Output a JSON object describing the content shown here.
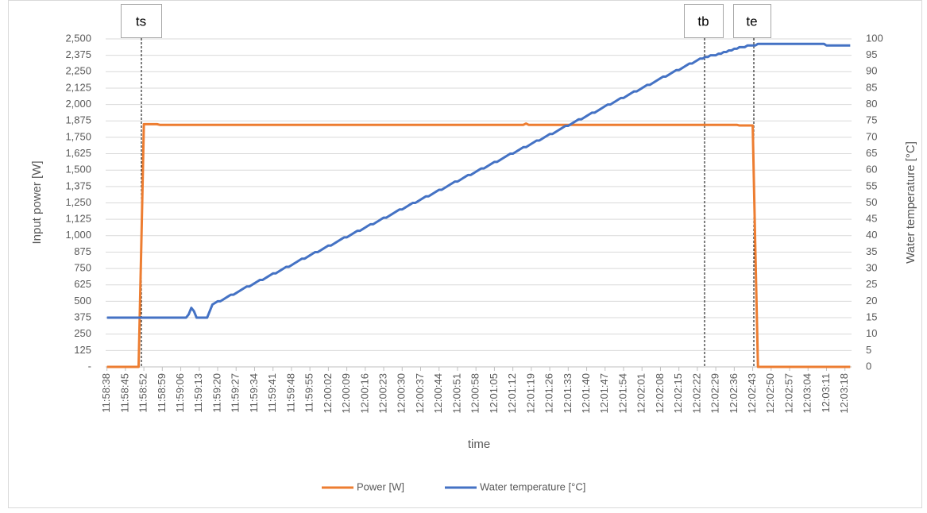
{
  "chart_data": {
    "type": "line",
    "x_label": "time",
    "y_label": "Input power [W]",
    "y2_label": "Water temperature [°C]",
    "annotations": [
      "ts",
      "tb",
      "te"
    ],
    "ylim": [
      0,
      2500
    ],
    "yticks": [
      {
        "value": 0,
        "label": "-"
      },
      125,
      250,
      375,
      500,
      625,
      750,
      875,
      {
        "value": 1000,
        "label": "1,000"
      },
      {
        "value": 1125,
        "label": "1,125"
      },
      {
        "value": 1250,
        "label": "1,250"
      },
      {
        "value": 1375,
        "label": "1,375"
      },
      {
        "value": 1500,
        "label": "1,500"
      },
      {
        "value": 1625,
        "label": "1,625"
      },
      {
        "value": 1750,
        "label": "1,750"
      },
      {
        "value": 1875,
        "label": "1,875"
      },
      {
        "value": 2000,
        "label": "2,000"
      },
      {
        "value": 2125,
        "label": "2,125"
      },
      {
        "value": 2250,
        "label": "2,250"
      },
      {
        "value": 2375,
        "label": "2,375"
      },
      {
        "value": 2500,
        "label": "2,500"
      }
    ],
    "y2lim": [
      0,
      100
    ],
    "y2ticks": [
      0,
      5,
      10,
      15,
      20,
      25,
      30,
      35,
      40,
      45,
      50,
      55,
      60,
      65,
      70,
      75,
      80,
      85,
      90,
      95,
      100
    ],
    "grid": true,
    "legend": "bottom",
    "categories": [
      "11:58:38",
      null,
      null,
      null,
      null,
      null,
      null,
      "11:58:45",
      null,
      null,
      null,
      null,
      null,
      null,
      "11:58:52",
      null,
      null,
      null,
      null,
      null,
      null,
      "11:58:59",
      null,
      null,
      null,
      null,
      null,
      null,
      "11:59:06",
      null,
      null,
      null,
      null,
      null,
      null,
      "11:59:13",
      null,
      null,
      null,
      null,
      null,
      null,
      "11:59:20",
      null,
      null,
      null,
      null,
      null,
      null,
      "11:59:27",
      null,
      null,
      null,
      null,
      null,
      null,
      "11:59:34",
      null,
      null,
      null,
      null,
      null,
      null,
      "11:59:41",
      null,
      null,
      null,
      null,
      null,
      null,
      "11:59:48",
      null,
      null,
      null,
      null,
      null,
      null,
      "11:59:55",
      null,
      null,
      null,
      null,
      null,
      null,
      "12:00:02",
      null,
      null,
      null,
      null,
      null,
      null,
      "12:00:09",
      null,
      null,
      null,
      null,
      null,
      null,
      "12:00:16",
      null,
      null,
      null,
      null,
      null,
      null,
      "12:00:23",
      null,
      null,
      null,
      null,
      null,
      null,
      "12:00:30",
      null,
      null,
      null,
      null,
      null,
      null,
      "12:00:37",
      null,
      null,
      null,
      null,
      null,
      null,
      "12:00:44",
      null,
      null,
      null,
      null,
      null,
      null,
      "12:00:51",
      null,
      null,
      null,
      null,
      null,
      null,
      "12:00:58",
      null,
      null,
      null,
      null,
      null,
      null,
      "12:01:05",
      null,
      null,
      null,
      null,
      null,
      null,
      "12:01:12",
      null,
      null,
      null,
      null,
      null,
      null,
      "12:01:19",
      null,
      null,
      null,
      null,
      null,
      null,
      "12:01:26",
      null,
      null,
      null,
      null,
      null,
      null,
      "12:01:33",
      null,
      null,
      null,
      null,
      null,
      null,
      "12:01:40",
      null,
      null,
      null,
      null,
      null,
      null,
      "12:01:47",
      null,
      null,
      null,
      null,
      null,
      null,
      "12:01:54",
      null,
      null,
      null,
      null,
      null,
      null,
      "12:02:01",
      null,
      null,
      null,
      null,
      null,
      null,
      "12:02:08",
      null,
      null,
      null,
      null,
      null,
      null,
      "12:02:15",
      null,
      null,
      null,
      null,
      null,
      null,
      "12:02:22",
      null,
      null,
      null,
      null,
      null,
      null,
      "12:02:29",
      null,
      null,
      null,
      null,
      null,
      null,
      "12:02:36",
      null,
      null,
      null,
      null,
      null,
      null,
      "12:02:43",
      null,
      null,
      null,
      null,
      null,
      null,
      "12:02:50",
      null,
      null,
      null,
      null,
      null,
      null,
      "12:02:57",
      null,
      null,
      null,
      null,
      null,
      null,
      "12:03:04",
      null,
      null,
      null,
      null,
      null,
      null,
      "12:03:11",
      null,
      null,
      null,
      null,
      null,
      null,
      "12:03:18",
      null,
      null
    ],
    "series": [
      {
        "name": "Power [W]",
        "color": "#ed7d31",
        "values": [
          0,
          0,
          0,
          0,
          0,
          0,
          0,
          0,
          0,
          0,
          0,
          0,
          0,
          900,
          1850,
          1850,
          1850,
          1850,
          1850,
          1850,
          1845,
          1845,
          1845,
          1845,
          1845,
          1845,
          1845,
          1845,
          1845,
          1845,
          1845,
          1845,
          1845,
          1845,
          1845,
          1845,
          1845,
          1845,
          1845,
          1845,
          1845,
          1845,
          1845,
          1845,
          1845,
          1845,
          1845,
          1845,
          1845,
          1845,
          1845,
          1845,
          1845,
          1845,
          1845,
          1845,
          1845,
          1845,
          1845,
          1845,
          1845,
          1845,
          1845,
          1845,
          1845,
          1845,
          1845,
          1845,
          1845,
          1845,
          1845,
          1845,
          1845,
          1845,
          1845,
          1845,
          1845,
          1845,
          1845,
          1845,
          1845,
          1845,
          1845,
          1845,
          1845,
          1845,
          1845,
          1845,
          1845,
          1845,
          1845,
          1845,
          1845,
          1845,
          1845,
          1845,
          1845,
          1845,
          1845,
          1845,
          1845,
          1845,
          1845,
          1845,
          1845,
          1845,
          1845,
          1845,
          1845,
          1845,
          1845,
          1845,
          1845,
          1845,
          1845,
          1845,
          1845,
          1845,
          1845,
          1845,
          1845,
          1845,
          1845,
          1845,
          1845,
          1845,
          1845,
          1845,
          1845,
          1845,
          1845,
          1845,
          1845,
          1845,
          1845,
          1845,
          1845,
          1845,
          1845,
          1845,
          1845,
          1845,
          1845,
          1845,
          1845,
          1845,
          1845,
          1845,
          1845,
          1845,
          1845,
          1845,
          1845,
          1845,
          1845,
          1845,
          1845,
          1845,
          1845,
          1855,
          1845,
          1845,
          1845,
          1845,
          1845,
          1845,
          1845,
          1845,
          1845,
          1845,
          1845,
          1845,
          1845,
          1845,
          1845,
          1845,
          1845,
          1845,
          1845,
          1845,
          1845,
          1845,
          1845,
          1845,
          1845,
          1845,
          1845,
          1845,
          1845,
          1845,
          1845,
          1845,
          1845,
          1845,
          1845,
          1845,
          1845,
          1845,
          1845,
          1845,
          1845,
          1845,
          1845,
          1845,
          1845,
          1845,
          1845,
          1845,
          1845,
          1845,
          1845,
          1845,
          1845,
          1845,
          1845,
          1845,
          1845,
          1845,
          1845,
          1845,
          1845,
          1845,
          1845,
          1845,
          1845,
          1845,
          1845,
          1845,
          1845,
          1845,
          1845,
          1845,
          1845,
          1845,
          1845,
          1845,
          1845,
          1845,
          1845,
          1845,
          1840,
          1840,
          1840,
          1840,
          1840,
          1840,
          900,
          0,
          0,
          0,
          0,
          0,
          0,
          0,
          0,
          0,
          0,
          0,
          0,
          0,
          0,
          0,
          0,
          0,
          0,
          0,
          0,
          0,
          0,
          0,
          0,
          0,
          0,
          0,
          0,
          0,
          0,
          0,
          0,
          0,
          0,
          0,
          0
        ]
      },
      {
        "name": "Water temperature [°C]",
        "color": "#4472c4",
        "axis": "y2",
        "values": [
          15,
          15,
          15,
          15,
          15,
          15,
          15,
          15,
          15,
          15,
          15,
          15,
          15,
          15,
          15,
          15,
          15,
          15,
          15,
          15,
          15,
          15,
          15,
          15,
          15,
          15,
          15,
          15,
          15,
          15,
          15,
          16,
          18,
          17,
          15,
          15,
          15,
          15,
          15,
          17,
          19,
          19.5,
          20,
          20,
          20.5,
          21,
          21.5,
          22,
          22,
          22.5,
          23,
          23.5,
          24,
          24.5,
          24.5,
          25,
          25.5,
          26,
          26.5,
          26.5,
          27,
          27.5,
          28,
          28.5,
          28.5,
          29,
          29.5,
          30,
          30.5,
          30.5,
          31,
          31.5,
          32,
          32.5,
          33,
          33,
          33.5,
          34,
          34.5,
          35,
          35,
          35.5,
          36,
          36.5,
          37,
          37,
          37.5,
          38,
          38.5,
          39,
          39.5,
          39.5,
          40,
          40.5,
          41,
          41.5,
          41.5,
          42,
          42.5,
          43,
          43.5,
          43.5,
          44,
          44.5,
          45,
          45.5,
          45.5,
          46,
          46.5,
          47,
          47.5,
          48,
          48,
          48.5,
          49,
          49.5,
          50,
          50,
          50.5,
          51,
          51.5,
          52,
          52,
          52.5,
          53,
          53.5,
          54,
          54,
          54.5,
          55,
          55.5,
          56,
          56.5,
          56.5,
          57,
          57.5,
          58,
          58.5,
          58.5,
          59,
          59.5,
          60,
          60.5,
          60.5,
          61,
          61.5,
          62,
          62.5,
          62.5,
          63,
          63.5,
          64,
          64.5,
          65,
          65,
          65.5,
          66,
          66.5,
          67,
          67,
          67.5,
          68,
          68.5,
          69,
          69,
          69.5,
          70,
          70.5,
          71,
          71,
          71.5,
          72,
          72.5,
          73,
          73.5,
          73.5,
          74,
          74.5,
          75,
          75.5,
          75.5,
          76,
          76.5,
          77,
          77.5,
          77.5,
          78,
          78.5,
          79,
          79.5,
          80,
          80,
          80.5,
          81,
          81.5,
          82,
          82,
          82.5,
          83,
          83.5,
          84,
          84,
          84.5,
          85,
          85.5,
          86,
          86,
          86.5,
          87,
          87.5,
          88,
          88.5,
          88.5,
          89,
          89.5,
          90,
          90.5,
          90.5,
          91,
          91.5,
          92,
          92.5,
          92.5,
          93,
          93.5,
          94,
          94,
          94.5,
          94.5,
          95,
          95,
          95,
          95.5,
          95.5,
          96,
          96,
          96.5,
          96.5,
          97,
          97,
          97.5,
          97.5,
          97.5,
          98,
          98,
          98,
          98,
          98.5,
          98.5,
          98.5,
          98.5,
          98.5,
          98.5,
          98.5,
          98.5,
          98.5,
          98.5,
          98.5,
          98.5,
          98.5,
          98.5,
          98.5,
          98.5,
          98.5,
          98.5,
          98.5,
          98.5,
          98.5,
          98.5,
          98.5,
          98.5,
          98.5,
          98.5,
          98,
          98,
          98,
          98,
          98,
          98,
          98,
          98,
          98,
          98
        ]
      }
    ]
  }
}
